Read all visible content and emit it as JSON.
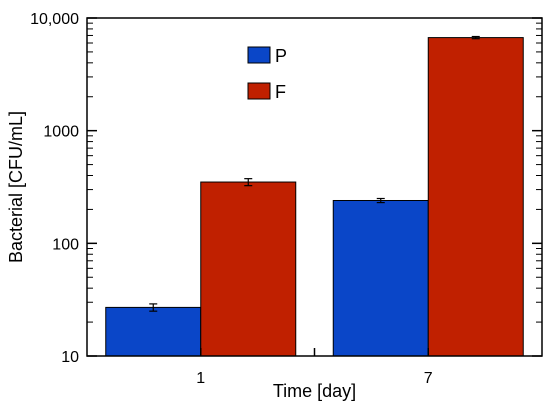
{
  "chart_data": {
    "type": "bar",
    "categories": [
      "1",
      "7"
    ],
    "series": [
      {
        "name": "P",
        "color": "#0a46c8",
        "values": [
          27,
          240
        ],
        "errors": [
          2,
          10
        ]
      },
      {
        "name": "F",
        "color": "#c02000",
        "values": [
          350,
          6700
        ],
        "errors": [
          25,
          150
        ]
      }
    ],
    "xlabel": "Time [day]",
    "ylabel": "Bacterial [CFU/mL]",
    "yscale": "log",
    "ylim": [
      10,
      10000
    ],
    "ytick_labels": [
      "10",
      "100",
      "1000",
      "10,000"
    ],
    "grid": false,
    "legend_position": "top-center"
  }
}
